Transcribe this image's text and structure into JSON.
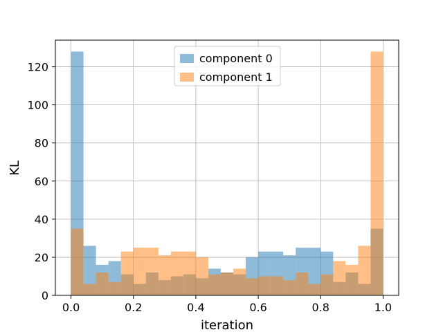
{
  "chart_data": {
    "type": "bar",
    "xlabel": "iteration",
    "ylabel": "KL",
    "xlim": [
      -0.05,
      1.05
    ],
    "ylim": [
      0,
      134
    ],
    "xticks": [
      0.0,
      0.2,
      0.4,
      0.6,
      0.8,
      1.0
    ],
    "xtick_labels": [
      "0.0",
      "0.2",
      "0.4",
      "0.6",
      "0.8",
      "1.0"
    ],
    "yticks": [
      0,
      20,
      40,
      60,
      80,
      100,
      120
    ],
    "ytick_labels": [
      "0",
      "20",
      "40",
      "60",
      "80",
      "100",
      "120"
    ],
    "grid": true,
    "legend_position": "upper-center",
    "bin_edges": [
      0.0,
      0.04,
      0.08,
      0.12,
      0.16,
      0.2,
      0.24,
      0.28,
      0.32,
      0.36,
      0.4,
      0.44,
      0.48,
      0.52,
      0.56,
      0.6,
      0.64,
      0.68,
      0.72,
      0.76,
      0.8,
      0.84,
      0.88,
      0.92,
      0.96,
      1.0
    ],
    "series": [
      {
        "name": "component 0",
        "color": "#1f77b4",
        "alpha": 0.5,
        "values": [
          128,
          26,
          16,
          18,
          11,
          6,
          12,
          8,
          10,
          11,
          9,
          14,
          12,
          11,
          20,
          23,
          23,
          21,
          25,
          25,
          23,
          7,
          12,
          6,
          35
        ]
      },
      {
        "name": "component 1",
        "color": "#ff7f0e",
        "alpha": 0.5,
        "values": [
          35,
          6,
          12,
          7,
          23,
          25,
          25,
          21,
          23,
          23,
          20,
          11,
          12,
          14,
          9,
          10,
          10,
          8,
          12,
          6,
          11,
          18,
          16,
          26,
          128
        ]
      }
    ]
  }
}
